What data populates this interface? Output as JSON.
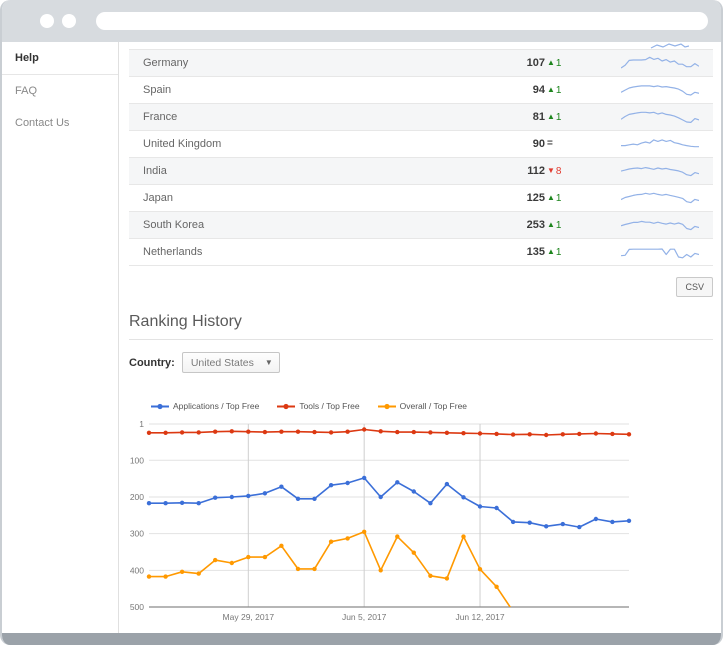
{
  "sidebar": {
    "items": [
      {
        "label": "Help",
        "active": true
      },
      {
        "label": "FAQ",
        "active": false
      },
      {
        "label": "Contact Us",
        "active": false
      }
    ]
  },
  "table": {
    "csv_label": "CSV",
    "rows": [
      {
        "country": "Germany",
        "rank": "107",
        "change": {
          "dir": "up",
          "symbol": "▲",
          "value": "1"
        },
        "sparkline": [
          1.2,
          2.5,
          4.8,
          5,
          5,
          5,
          5.2,
          6.3,
          5.3,
          5.8,
          4.5,
          5.2,
          4,
          4.5,
          3,
          3,
          1.8,
          1.8,
          3.3,
          2
        ]
      },
      {
        "country": "Spain",
        "rank": "94",
        "change": {
          "dir": "up",
          "symbol": "▲",
          "value": "1"
        },
        "sparkline": [
          2.5,
          3.5,
          4.5,
          5,
          5.3,
          5.5,
          5.5,
          5.5,
          5.2,
          5.5,
          5,
          5.2,
          4.8,
          4.5,
          4,
          3,
          1.5,
          1.2,
          2.5,
          2
        ]
      },
      {
        "country": "France",
        "rank": "81",
        "change": {
          "dir": "up",
          "symbol": "▲",
          "value": "1"
        },
        "sparkline": [
          2.5,
          3.8,
          4.8,
          5.2,
          5.5,
          5.8,
          5.8,
          5.5,
          5.8,
          5,
          5.5,
          4.8,
          4.5,
          4,
          3.2,
          2.2,
          1.2,
          1,
          2.8,
          2.2
        ]
      },
      {
        "country": "United Kingdom",
        "rank": "90",
        "change": {
          "dir": "eq",
          "symbol": "=",
          "value": ""
        },
        "sparkline": [
          2.8,
          2.8,
          3.2,
          3.5,
          3.2,
          4,
          4.5,
          4,
          5.5,
          4.8,
          5.5,
          4.8,
          5.3,
          4.2,
          3.8,
          3.2,
          2.8,
          2.5,
          2.3,
          2.3
        ]
      },
      {
        "country": "India",
        "rank": "112",
        "change": {
          "dir": "down",
          "symbol": "▼",
          "value": "8"
        },
        "sparkline": [
          3.5,
          4,
          4.5,
          4.8,
          5,
          4.7,
          5.2,
          4.8,
          4.4,
          5,
          4.5,
          4.8,
          4.3,
          4,
          3.6,
          3,
          1.8,
          1.4,
          2.8,
          2.3
        ]
      },
      {
        "country": "Japan",
        "rank": "125",
        "change": {
          "dir": "up",
          "symbol": "▲",
          "value": "1"
        },
        "sparkline": [
          2.8,
          3.8,
          4.3,
          4.8,
          5.2,
          5.3,
          5.8,
          5.4,
          5.8,
          5.3,
          4.9,
          5.3,
          4.8,
          4.4,
          3.9,
          3.4,
          1.8,
          1.4,
          2.9,
          2.4
        ]
      },
      {
        "country": "South Korea",
        "rank": "253",
        "change": {
          "dir": "up",
          "symbol": "▲",
          "value": "1"
        },
        "sparkline": [
          3.2,
          3.8,
          4.3,
          4.8,
          4.8,
          5.3,
          4.9,
          4.9,
          4.4,
          4.9,
          4.4,
          4,
          4.5,
          4,
          4.5,
          3.9,
          1.9,
          1.4,
          2.9,
          2.4
        ]
      },
      {
        "country": "Netherlands",
        "rank": "135",
        "change": {
          "dir": "up",
          "symbol": "▲",
          "value": "1"
        },
        "sparkline": [
          1.8,
          2,
          4.8,
          4.9,
          4.9,
          4.9,
          4.9,
          4.9,
          4.9,
          4.9,
          5,
          2.4,
          4.9,
          4.9,
          1.2,
          0.8,
          2.4,
          1.2,
          2.9,
          2.4
        ]
      }
    ],
    "partial_sparkline": [
      [
        38,
        5
      ],
      [
        44,
        2
      ],
      [
        50,
        4
      ],
      [
        56,
        1
      ],
      [
        62,
        3
      ],
      [
        68,
        1
      ],
      [
        72,
        4
      ],
      [
        76,
        3
      ]
    ]
  },
  "ranking_history": {
    "title": "Ranking History",
    "country_label": "Country:",
    "country_value": "United States"
  },
  "chart_data": {
    "type": "line",
    "x_count": 30,
    "x_ticks": [
      {
        "i": 6,
        "label": "May 29, 2017"
      },
      {
        "i": 13,
        "label": "Jun 5, 2017"
      },
      {
        "i": 20,
        "label": "Jun 12, 2017"
      }
    ],
    "y_ticks": [
      1,
      100,
      200,
      300,
      400,
      500
    ],
    "ylim": [
      1,
      500
    ],
    "y_inverted": true,
    "grid": true,
    "legend_position": "top",
    "series": [
      {
        "name": "Applications / Top Free",
        "color": "#3b6fd8",
        "values": [
          217,
          217,
          216,
          217,
          202,
          200,
          197,
          190,
          172,
          205,
          205,
          168,
          162,
          148,
          200,
          160,
          185,
          217,
          165,
          201,
          226,
          230,
          268,
          270,
          280,
          274,
          282,
          260,
          268,
          265
        ]
      },
      {
        "name": "Tools / Top Free",
        "color": "#dc3912",
        "values": [
          25,
          25,
          24,
          24,
          22,
          21,
          22,
          23,
          22,
          22,
          23,
          24,
          22,
          16,
          21,
          23,
          23,
          24,
          25,
          26,
          27,
          28,
          30,
          29,
          31,
          29,
          28,
          27,
          28,
          29
        ]
      },
      {
        "name": "Overall / Top Free",
        "color": "#ff9900",
        "values": [
          417,
          417,
          404,
          409,
          372,
          380,
          364,
          364,
          333,
          396,
          396,
          322,
          313,
          295,
          400,
          308,
          352,
          415,
          422,
          308,
          397,
          445,
          512,
          null,
          null,
          null,
          null,
          null,
          null,
          null
        ]
      }
    ]
  },
  "colors": {
    "up": "#1d851d",
    "down": "#e13b30",
    "neutral": "#444444",
    "sparkline": "#93b2e7",
    "grid_h": "#e2e2e2",
    "grid_v": "#cfcfcf",
    "axis": "#8a8a8a",
    "tick_text": "#777777"
  }
}
